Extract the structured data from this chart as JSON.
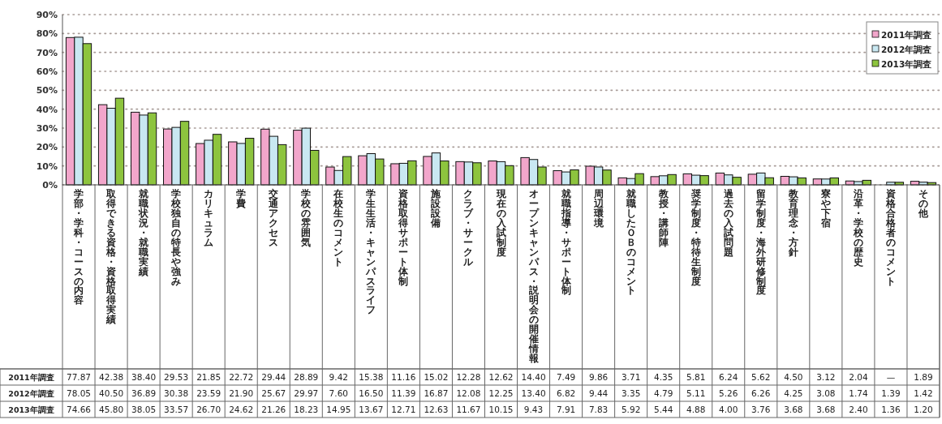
{
  "chart_data": {
    "type": "bar",
    "categories": [
      "学部・学科・コースの内容",
      "取得できる資格・資格取得実績",
      "就職状況・就職実績",
      "学校独自の特長や強み",
      "カリキュラム",
      "学費",
      "交通アクセス",
      "学校の雰囲気",
      "在校生のコメント",
      "学生生活・キャンパスライフ",
      "資格取得サポート体制",
      "施設設備",
      "クラブ・サークル",
      "現在の入試制度",
      "オープンキャンパス・説明会の開催情報",
      "就職指導・サポート体制",
      "周辺環境",
      "就職したＯＢのコメント",
      "教授・講師陣",
      "奨学制度・特待生制度",
      "過去の入試問題",
      "留学制度・海外研修制度",
      "教育理念・方針",
      "寮や下宿",
      "沿革・学校の歴史",
      "資格合格者のコメント",
      "その他"
    ],
    "series": [
      {
        "name": "2011年調査",
        "color": "#f2a6cb",
        "values": [
          77.87,
          42.38,
          38.4,
          29.53,
          21.85,
          22.72,
          29.44,
          28.89,
          9.42,
          15.38,
          11.16,
          15.02,
          12.28,
          12.62,
          14.4,
          7.49,
          9.86,
          3.71,
          4.35,
          5.81,
          6.24,
          5.62,
          4.5,
          3.12,
          2.04,
          null,
          1.89
        ],
        "value_labels": [
          "77.87",
          "42.38",
          "38.40",
          "29.53",
          "21.85",
          "22.72",
          "29.44",
          "28.89",
          "9.42",
          "15.38",
          "11.16",
          "15.02",
          "12.28",
          "12.62",
          "14.40",
          "7.49",
          "9.86",
          "3.71",
          "4.35",
          "5.81",
          "6.24",
          "5.62",
          "4.50",
          "3.12",
          "2.04",
          "—",
          "1.89"
        ]
      },
      {
        "name": "2012年調査",
        "color": "#c9e8f2",
        "values": [
          78.05,
          40.5,
          36.89,
          30.38,
          23.59,
          21.9,
          25.67,
          29.97,
          7.6,
          16.5,
          11.39,
          16.87,
          12.08,
          12.25,
          13.4,
          6.82,
          9.44,
          3.35,
          4.79,
          5.11,
          5.26,
          6.26,
          4.25,
          3.08,
          1.74,
          1.39,
          1.42
        ],
        "value_labels": [
          "78.05",
          "40.50",
          "36.89",
          "30.38",
          "23.59",
          "21.90",
          "25.67",
          "29.97",
          "7.60",
          "16.50",
          "11.39",
          "16.87",
          "12.08",
          "12.25",
          "13.40",
          "6.82",
          "9.44",
          "3.35",
          "4.79",
          "5.11",
          "5.26",
          "6.26",
          "4.25",
          "3.08",
          "1.74",
          "1.39",
          "1.42"
        ]
      },
      {
        "name": "2013年調査",
        "color": "#8dc43e",
        "values": [
          74.66,
          45.8,
          38.05,
          33.57,
          26.7,
          24.62,
          21.26,
          18.23,
          14.95,
          13.67,
          12.71,
          12.63,
          11.67,
          10.15,
          9.43,
          7.91,
          7.83,
          5.92,
          5.44,
          4.88,
          4.0,
          3.76,
          3.68,
          3.68,
          2.4,
          1.36,
          1.2
        ],
        "value_labels": [
          "74.66",
          "45.80",
          "38.05",
          "33.57",
          "26.70",
          "24.62",
          "21.26",
          "18.23",
          "14.95",
          "13.67",
          "12.71",
          "12.63",
          "11.67",
          "10.15",
          "9.43",
          "7.91",
          "7.83",
          "5.92",
          "5.44",
          "4.88",
          "4.00",
          "3.76",
          "3.68",
          "3.68",
          "2.40",
          "1.36",
          "1.20"
        ]
      }
    ],
    "ylim": [
      0,
      90
    ],
    "yticks": [
      {
        "value": 0,
        "label": "0%"
      },
      {
        "value": 10,
        "label": "10%"
      },
      {
        "value": 20,
        "label": "20%"
      },
      {
        "value": 30,
        "label": "30%"
      },
      {
        "value": 40,
        "label": "40%"
      },
      {
        "value": 50,
        "label": "50%"
      },
      {
        "value": 60,
        "label": "60%"
      },
      {
        "value": 70,
        "label": "70%"
      },
      {
        "value": 80,
        "label": "80%"
      },
      {
        "value": 90,
        "label": "90%"
      }
    ],
    "grid": "y",
    "legend": "top right"
  }
}
